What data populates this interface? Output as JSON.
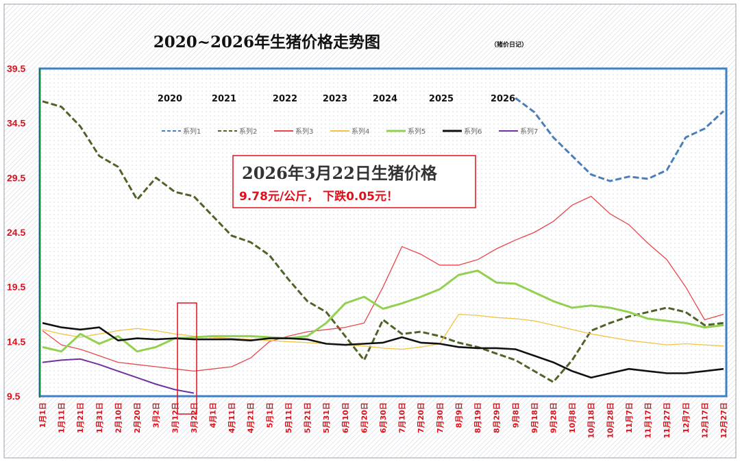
{
  "chart_data": {
    "type": "line",
    "title": "2020~2026年生猪价格走势图",
    "subtitle": "（猪价日记）",
    "annotation": {
      "title": "2026年3月22日生猪价格",
      "detail": "9.78元/公斤， 下跌0.05元！"
    },
    "ylim": [
      9.5,
      39.5
    ],
    "yticks": [
      "9.5",
      "14.5",
      "19.5",
      "24.5",
      "29.5",
      "34.5",
      "39.5"
    ],
    "grid": false,
    "legend_position": "top-center",
    "year_labels": [
      "2020",
      "2021",
      "2022",
      "2023",
      "2024",
      "2025",
      "2026"
    ],
    "x_categories": [
      "1月1日",
      "1月11日",
      "1月21日",
      "1月31日",
      "2月10日",
      "2月20日",
      "3月2日",
      "3月12日",
      "3月22日",
      "4月1日",
      "4月11日",
      "4月21日",
      "5月1日",
      "5月11日",
      "5月21日",
      "5月31日",
      "6月10日",
      "6月20日",
      "6月30日",
      "7月10日",
      "7月20日",
      "7月30日",
      "8月9日",
      "8月19日",
      "8月29日",
      "9月8日",
      "9月18日",
      "9月28日",
      "10月8日",
      "10月18日",
      "10月28日",
      "11月7日",
      "11月17日",
      "11月27日",
      "12月7日",
      "12月17日",
      "12月27日"
    ],
    "series": [
      {
        "name": "系列1",
        "year": "2020",
        "color": "#4a7ebb",
        "dash": "dashed",
        "values": [
          null,
          null,
          null,
          null,
          null,
          null,
          null,
          null,
          null,
          null,
          null,
          null,
          null,
          null,
          null,
          null,
          null,
          null,
          null,
          null,
          null,
          null,
          null,
          null,
          null,
          36.8,
          35.5,
          33.2,
          31.5,
          29.8,
          29.2,
          29.6,
          29.4,
          30.2,
          33.2,
          34.0,
          35.6
        ]
      },
      {
        "name": "系列2",
        "year": "2021",
        "color": "#4f6228",
        "dash": "dashed",
        "values": [
          36.5,
          36.0,
          34.2,
          31.5,
          30.5,
          27.5,
          29.5,
          28.2,
          27.8,
          26.0,
          24.2,
          23.6,
          22.4,
          20.2,
          18.2,
          17.2,
          15.0,
          12.8,
          16.5,
          15.2,
          15.4,
          15.0,
          14.4,
          14.0,
          13.4,
          12.8,
          11.8,
          10.8,
          12.8,
          15.5,
          16.2,
          16.8,
          17.2,
          17.6,
          17.2,
          16.0,
          16.2
        ]
      },
      {
        "name": "系列3",
        "year": "2022",
        "color": "#e8464a",
        "dash": "solid",
        "values": [
          15.5,
          14.2,
          13.8,
          13.2,
          12.6,
          12.4,
          12.2,
          12.0,
          11.8,
          12.0,
          12.2,
          13.0,
          14.5,
          15.0,
          15.4,
          15.6,
          15.8,
          16.2,
          19.5,
          23.2,
          22.5,
          21.5,
          21.5,
          22.0,
          23.0,
          23.8,
          24.5,
          25.5,
          27.0,
          27.8,
          26.2,
          25.2,
          23.5,
          22.0,
          19.5,
          16.5,
          17.0
        ]
      },
      {
        "name": "系列4",
        "year": "2023",
        "color": "#f4c242",
        "dash": "solid",
        "values": [
          15.6,
          15.2,
          14.9,
          15.2,
          15.5,
          15.7,
          15.5,
          15.2,
          15.0,
          14.9,
          14.8,
          14.7,
          14.6,
          14.5,
          14.4,
          14.3,
          14.2,
          14.1,
          13.9,
          13.8,
          14.0,
          14.3,
          17.0,
          16.9,
          16.7,
          16.6,
          16.4,
          16.0,
          15.6,
          15.2,
          14.9,
          14.6,
          14.4,
          14.2,
          14.3,
          14.2,
          14.1
        ]
      },
      {
        "name": "系列5",
        "year": "2024",
        "color": "#92d050",
        "dash": "solid",
        "values": [
          14.0,
          13.6,
          15.2,
          14.3,
          15.0,
          13.6,
          14.0,
          14.8,
          14.9,
          15.0,
          15.0,
          15.0,
          14.9,
          14.8,
          15.0,
          16.2,
          18.0,
          18.6,
          17.5,
          18.0,
          18.6,
          19.3,
          20.6,
          21.0,
          19.9,
          19.8,
          19.0,
          18.2,
          17.6,
          17.8,
          17.6,
          17.2,
          16.6,
          16.4,
          16.2,
          15.8,
          16.0
        ]
      },
      {
        "name": "系列6",
        "year": "2025",
        "color": "#111111",
        "dash": "solid",
        "values": [
          16.2,
          15.8,
          15.6,
          15.8,
          14.6,
          14.8,
          14.7,
          14.8,
          14.7,
          14.7,
          14.7,
          14.6,
          14.8,
          14.8,
          14.7,
          14.3,
          14.2,
          14.3,
          14.4,
          14.9,
          14.4,
          14.3,
          14.0,
          13.9,
          13.9,
          13.8,
          13.2,
          12.6,
          11.8,
          11.2,
          11.6,
          12.0,
          11.8,
          11.6,
          11.6,
          11.8,
          12.0
        ]
      },
      {
        "name": "系列7",
        "year": "2026",
        "color": "#7030a0",
        "dash": "solid",
        "values": [
          12.6,
          12.8,
          12.9,
          12.4,
          11.8,
          11.2,
          10.6,
          10.1,
          9.78,
          null,
          null,
          null,
          null,
          null,
          null,
          null,
          null,
          null,
          null,
          null,
          null,
          null,
          null,
          null,
          null,
          null,
          null,
          null,
          null,
          null,
          null,
          null,
          null,
          null,
          null,
          null,
          null
        ]
      }
    ]
  }
}
